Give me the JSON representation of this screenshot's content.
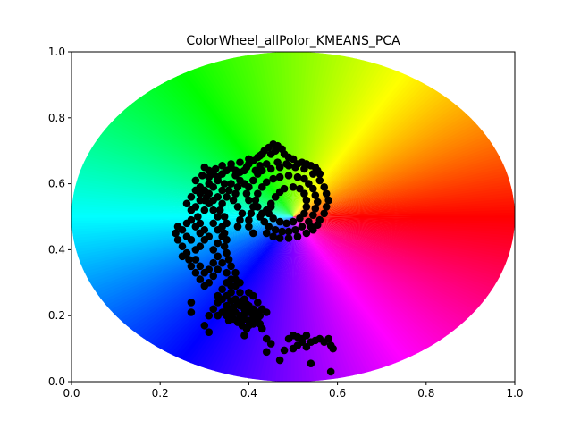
{
  "chart_data": {
    "type": "scatter",
    "title": "ColorWheel_allPolor_KMEANS_PCA",
    "xlabel": "",
    "ylabel": "",
    "xlim": [
      0.0,
      1.0
    ],
    "ylim": [
      0.0,
      1.0
    ],
    "x_ticks": [
      "0.0",
      "0.2",
      "0.4",
      "0.6",
      "0.8",
      "1.0"
    ],
    "y_ticks": [
      "0.0",
      "0.2",
      "0.4",
      "0.6",
      "0.8",
      "1.0"
    ],
    "grid": false,
    "legend": "none",
    "background": "hue color wheel (red at right, green at top-left, blue at bottom-left, magenta at bottom-right)",
    "marker_color": "#000000",
    "color_wheel": {
      "center": [
        0.5,
        0.5
      ],
      "radius": 0.5
    },
    "series": [
      {
        "values": [
          [
            0.445,
            0.71
          ],
          [
            0.455,
            0.72
          ],
          [
            0.465,
            0.715
          ],
          [
            0.475,
            0.705
          ],
          [
            0.435,
            0.7
          ],
          [
            0.43,
            0.69
          ],
          [
            0.42,
            0.68
          ],
          [
            0.45,
            0.69
          ],
          [
            0.46,
            0.7
          ],
          [
            0.48,
            0.69
          ],
          [
            0.49,
            0.68
          ],
          [
            0.5,
            0.675
          ],
          [
            0.51,
            0.66
          ],
          [
            0.52,
            0.665
          ],
          [
            0.53,
            0.66
          ],
          [
            0.54,
            0.655
          ],
          [
            0.55,
            0.65
          ],
          [
            0.555,
            0.64
          ],
          [
            0.56,
            0.63
          ],
          [
            0.41,
            0.67
          ],
          [
            0.4,
            0.66
          ],
          [
            0.395,
            0.65
          ],
          [
            0.39,
            0.64
          ],
          [
            0.38,
            0.635
          ],
          [
            0.37,
            0.64
          ],
          [
            0.36,
            0.65
          ],
          [
            0.35,
            0.64
          ],
          [
            0.34,
            0.63
          ],
          [
            0.33,
            0.62
          ],
          [
            0.32,
            0.63
          ],
          [
            0.31,
            0.64
          ],
          [
            0.3,
            0.65
          ],
          [
            0.31,
            0.6
          ],
          [
            0.3,
            0.58
          ],
          [
            0.305,
            0.56
          ],
          [
            0.31,
            0.54
          ],
          [
            0.32,
            0.52
          ],
          [
            0.33,
            0.5
          ],
          [
            0.32,
            0.48
          ],
          [
            0.33,
            0.46
          ],
          [
            0.34,
            0.44
          ],
          [
            0.33,
            0.42
          ],
          [
            0.32,
            0.4
          ],
          [
            0.33,
            0.38
          ],
          [
            0.34,
            0.36
          ],
          [
            0.33,
            0.34
          ],
          [
            0.32,
            0.32
          ],
          [
            0.31,
            0.3
          ],
          [
            0.3,
            0.29
          ],
          [
            0.29,
            0.31
          ],
          [
            0.28,
            0.33
          ],
          [
            0.27,
            0.35
          ],
          [
            0.28,
            0.37
          ],
          [
            0.26,
            0.39
          ],
          [
            0.25,
            0.41
          ],
          [
            0.24,
            0.43
          ],
          [
            0.235,
            0.45
          ],
          [
            0.24,
            0.47
          ],
          [
            0.25,
            0.46
          ],
          [
            0.26,
            0.48
          ],
          [
            0.27,
            0.49
          ],
          [
            0.28,
            0.47
          ],
          [
            0.29,
            0.45
          ],
          [
            0.3,
            0.43
          ],
          [
            0.31,
            0.44
          ],
          [
            0.3,
            0.46
          ],
          [
            0.29,
            0.48
          ],
          [
            0.285,
            0.5
          ],
          [
            0.27,
            0.52
          ],
          [
            0.26,
            0.54
          ],
          [
            0.27,
            0.56
          ],
          [
            0.28,
            0.58
          ],
          [
            0.29,
            0.57
          ],
          [
            0.3,
            0.55
          ],
          [
            0.31,
            0.57
          ],
          [
            0.32,
            0.59
          ],
          [
            0.33,
            0.61
          ],
          [
            0.345,
            0.6
          ],
          [
            0.355,
            0.58
          ],
          [
            0.35,
            0.56
          ],
          [
            0.34,
            0.54
          ],
          [
            0.335,
            0.52
          ],
          [
            0.345,
            0.5
          ],
          [
            0.35,
            0.48
          ],
          [
            0.34,
            0.47
          ],
          [
            0.345,
            0.45
          ],
          [
            0.35,
            0.43
          ],
          [
            0.345,
            0.41
          ],
          [
            0.35,
            0.39
          ],
          [
            0.355,
            0.37
          ],
          [
            0.36,
            0.35
          ],
          [
            0.37,
            0.33
          ],
          [
            0.36,
            0.31
          ],
          [
            0.37,
            0.29
          ],
          [
            0.38,
            0.27
          ],
          [
            0.37,
            0.25
          ],
          [
            0.38,
            0.23
          ],
          [
            0.39,
            0.22
          ],
          [
            0.4,
            0.21
          ],
          [
            0.41,
            0.2
          ],
          [
            0.42,
            0.21
          ],
          [
            0.43,
            0.22
          ],
          [
            0.44,
            0.21
          ],
          [
            0.425,
            0.2
          ],
          [
            0.415,
            0.19
          ],
          [
            0.4,
            0.185
          ],
          [
            0.39,
            0.19
          ],
          [
            0.38,
            0.2
          ],
          [
            0.37,
            0.21
          ],
          [
            0.36,
            0.22
          ],
          [
            0.35,
            0.23
          ],
          [
            0.34,
            0.25
          ],
          [
            0.33,
            0.26
          ],
          [
            0.34,
            0.28
          ],
          [
            0.35,
            0.3
          ],
          [
            0.36,
            0.29
          ],
          [
            0.37,
            0.31
          ],
          [
            0.38,
            0.3
          ],
          [
            0.36,
            0.27
          ],
          [
            0.35,
            0.26
          ],
          [
            0.33,
            0.24
          ],
          [
            0.32,
            0.22
          ],
          [
            0.31,
            0.2
          ],
          [
            0.3,
            0.17
          ],
          [
            0.31,
            0.15
          ],
          [
            0.27,
            0.24
          ],
          [
            0.27,
            0.21
          ],
          [
            0.4,
            0.17
          ],
          [
            0.39,
            0.14
          ],
          [
            0.43,
            0.16
          ],
          [
            0.44,
            0.13
          ],
          [
            0.45,
            0.115
          ],
          [
            0.44,
            0.09
          ],
          [
            0.47,
            0.065
          ],
          [
            0.48,
            0.095
          ],
          [
            0.49,
            0.13
          ],
          [
            0.5,
            0.14
          ],
          [
            0.51,
            0.135
          ],
          [
            0.52,
            0.13
          ],
          [
            0.53,
            0.14
          ],
          [
            0.52,
            0.12
          ],
          [
            0.51,
            0.11
          ],
          [
            0.5,
            0.1
          ],
          [
            0.53,
            0.105
          ],
          [
            0.54,
            0.12
          ],
          [
            0.55,
            0.125
          ],
          [
            0.56,
            0.13
          ],
          [
            0.57,
            0.12
          ],
          [
            0.58,
            0.13
          ],
          [
            0.585,
            0.11
          ],
          [
            0.59,
            0.1
          ],
          [
            0.54,
            0.055
          ],
          [
            0.585,
            0.03
          ],
          [
            0.39,
            0.25
          ],
          [
            0.4,
            0.23
          ],
          [
            0.41,
            0.22
          ],
          [
            0.42,
            0.24
          ],
          [
            0.41,
            0.26
          ],
          [
            0.4,
            0.27
          ],
          [
            0.42,
            0.19
          ],
          [
            0.43,
            0.51
          ],
          [
            0.42,
            0.53
          ],
          [
            0.415,
            0.55
          ],
          [
            0.42,
            0.57
          ],
          [
            0.43,
            0.59
          ],
          [
            0.44,
            0.605
          ],
          [
            0.455,
            0.615
          ],
          [
            0.47,
            0.62
          ],
          [
            0.49,
            0.625
          ],
          [
            0.51,
            0.62
          ],
          [
            0.525,
            0.615
          ],
          [
            0.535,
            0.6
          ],
          [
            0.545,
            0.585
          ],
          [
            0.55,
            0.565
          ],
          [
            0.555,
            0.545
          ],
          [
            0.55,
            0.525
          ],
          [
            0.545,
            0.505
          ],
          [
            0.535,
            0.485
          ],
          [
            0.52,
            0.47
          ],
          [
            0.505,
            0.46
          ],
          [
            0.49,
            0.455
          ],
          [
            0.475,
            0.455
          ],
          [
            0.46,
            0.46
          ],
          [
            0.445,
            0.47
          ],
          [
            0.435,
            0.485
          ],
          [
            0.425,
            0.5
          ],
          [
            0.44,
            0.52
          ],
          [
            0.45,
            0.54
          ],
          [
            0.46,
            0.56
          ],
          [
            0.47,
            0.575
          ],
          [
            0.48,
            0.585
          ],
          [
            0.5,
            0.59
          ],
          [
            0.515,
            0.585
          ],
          [
            0.525,
            0.57
          ],
          [
            0.53,
            0.55
          ],
          [
            0.53,
            0.53
          ],
          [
            0.525,
            0.51
          ],
          [
            0.515,
            0.495
          ],
          [
            0.5,
            0.485
          ],
          [
            0.485,
            0.48
          ],
          [
            0.47,
            0.485
          ],
          [
            0.455,
            0.495
          ],
          [
            0.445,
            0.51
          ],
          [
            0.45,
            0.53
          ],
          [
            0.44,
            0.45
          ],
          [
            0.455,
            0.44
          ],
          [
            0.47,
            0.435
          ],
          [
            0.49,
            0.435
          ],
          [
            0.51,
            0.44
          ],
          [
            0.53,
            0.45
          ],
          [
            0.545,
            0.46
          ],
          [
            0.41,
            0.45
          ],
          [
            0.4,
            0.47
          ],
          [
            0.4,
            0.49
          ],
          [
            0.405,
            0.51
          ],
          [
            0.41,
            0.53
          ],
          [
            0.4,
            0.55
          ],
          [
            0.395,
            0.57
          ],
          [
            0.4,
            0.59
          ],
          [
            0.41,
            0.61
          ],
          [
            0.42,
            0.63
          ],
          [
            0.43,
            0.64
          ],
          [
            0.45,
            0.645
          ],
          [
            0.47,
            0.65
          ],
          [
            0.49,
            0.655
          ],
          [
            0.505,
            0.65
          ],
          [
            0.525,
            0.645
          ],
          [
            0.545,
            0.63
          ],
          [
            0.56,
            0.61
          ],
          [
            0.57,
            0.59
          ],
          [
            0.575,
            0.57
          ],
          [
            0.58,
            0.55
          ],
          [
            0.575,
            0.53
          ],
          [
            0.57,
            0.51
          ],
          [
            0.56,
            0.49
          ],
          [
            0.555,
            0.475
          ],
          [
            0.54,
            0.47
          ],
          [
            0.465,
            0.665
          ],
          [
            0.485,
            0.66
          ],
          [
            0.44,
            0.66
          ],
          [
            0.425,
            0.655
          ],
          [
            0.415,
            0.64
          ],
          [
            0.38,
            0.61
          ],
          [
            0.375,
            0.59
          ],
          [
            0.37,
            0.57
          ],
          [
            0.365,
            0.55
          ],
          [
            0.375,
            0.53
          ],
          [
            0.385,
            0.51
          ],
          [
            0.38,
            0.49
          ],
          [
            0.375,
            0.47
          ],
          [
            0.28,
            0.53
          ],
          [
            0.29,
            0.55
          ],
          [
            0.3,
            0.52
          ],
          [
            0.29,
            0.41
          ],
          [
            0.28,
            0.4
          ],
          [
            0.26,
            0.44
          ],
          [
            0.25,
            0.38
          ],
          [
            0.265,
            0.37
          ],
          [
            0.27,
            0.43
          ],
          [
            0.33,
            0.56
          ],
          [
            0.32,
            0.55
          ],
          [
            0.34,
            0.58
          ],
          [
            0.36,
            0.6
          ],
          [
            0.37,
            0.625
          ],
          [
            0.39,
            0.6
          ],
          [
            0.325,
            0.645
          ],
          [
            0.295,
            0.625
          ],
          [
            0.28,
            0.61
          ],
          [
            0.29,
            0.59
          ],
          [
            0.31,
            0.62
          ],
          [
            0.34,
            0.655
          ],
          [
            0.36,
            0.66
          ],
          [
            0.38,
            0.665
          ],
          [
            0.4,
            0.675
          ],
          [
            0.425,
            0.685
          ],
          [
            0.3,
            0.33
          ],
          [
            0.31,
            0.34
          ],
          [
            0.32,
            0.36
          ],
          [
            0.29,
            0.35
          ],
          [
            0.35,
            0.33
          ],
          [
            0.36,
            0.245
          ],
          [
            0.34,
            0.21
          ],
          [
            0.33,
            0.2
          ],
          [
            0.35,
            0.2
          ],
          [
            0.365,
            0.19
          ],
          [
            0.375,
            0.18
          ],
          [
            0.385,
            0.17
          ],
          [
            0.395,
            0.16
          ],
          [
            0.41,
            0.175
          ],
          [
            0.425,
            0.175
          ],
          [
            0.38,
            0.19
          ],
          [
            0.39,
            0.205
          ],
          [
            0.405,
            0.215
          ],
          [
            0.35,
            0.215
          ],
          [
            0.36,
            0.205
          ],
          [
            0.355,
            0.185
          ],
          [
            0.365,
            0.225
          ],
          [
            0.375,
            0.235
          ],
          [
            0.385,
            0.245
          ],
          [
            0.395,
            0.235
          ]
        ]
      }
    ]
  }
}
